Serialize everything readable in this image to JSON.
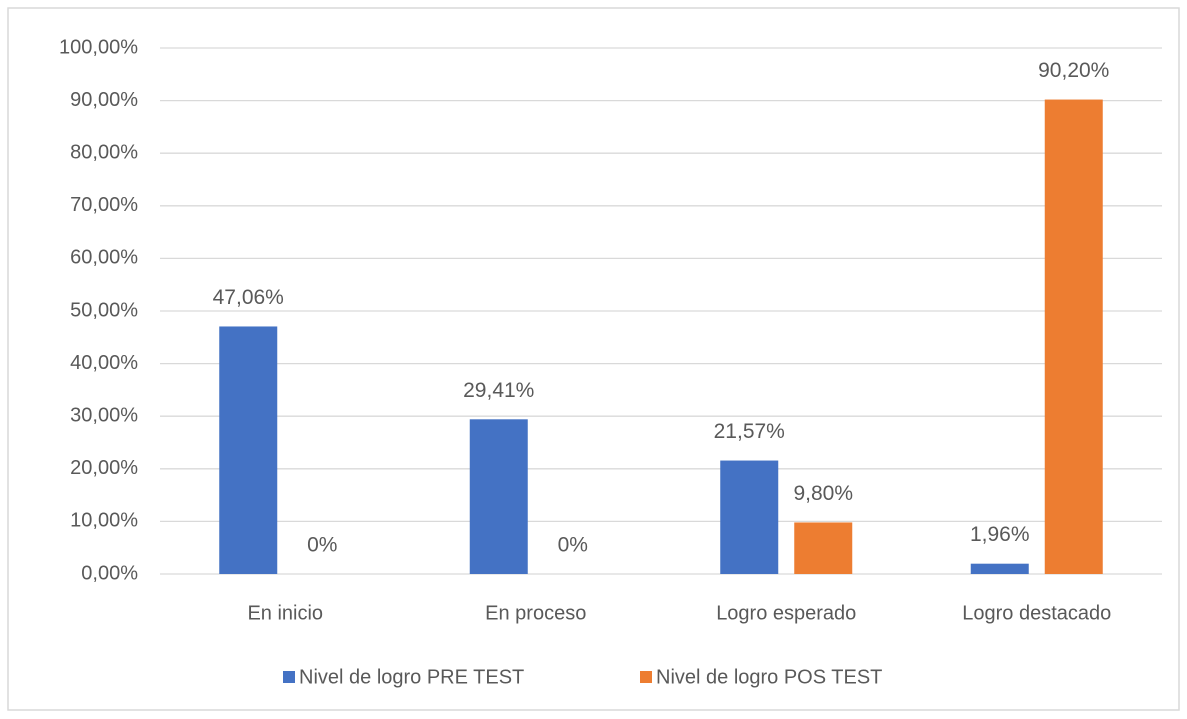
{
  "chart_data": {
    "type": "bar",
    "categories": [
      "En inicio",
      "En proceso",
      "Logro esperado",
      "Logro destacado"
    ],
    "series": [
      {
        "name": "Nivel de logro PRE TEST",
        "color": "#4472c4",
        "values": [
          47.06,
          29.41,
          21.57,
          1.96
        ],
        "value_labels": [
          "47,06%",
          "29,41%",
          "21,57%",
          "1,96%"
        ]
      },
      {
        "name": "Nivel de logro POS TEST",
        "color": "#ed7d31",
        "values": [
          0,
          0,
          9.8,
          90.2
        ],
        "value_labels": [
          "0%",
          "0%",
          "9,80%",
          "90,20%"
        ]
      }
    ],
    "ylim": [
      0,
      100
    ],
    "yticks": [
      {
        "value": 0,
        "label": "0,00%"
      },
      {
        "value": 10,
        "label": "10,00%"
      },
      {
        "value": 20,
        "label": "20,00%"
      },
      {
        "value": 30,
        "label": "30,00%"
      },
      {
        "value": 40,
        "label": "40,00%"
      },
      {
        "value": 50,
        "label": "50,00%"
      },
      {
        "value": 60,
        "label": "60,00%"
      },
      {
        "value": 70,
        "label": "70,00%"
      },
      {
        "value": 80,
        "label": "80,00%"
      },
      {
        "value": 90,
        "label": "90,00%"
      },
      {
        "value": 100,
        "label": "100,00%"
      }
    ],
    "grid": true,
    "legend": "bottom"
  }
}
